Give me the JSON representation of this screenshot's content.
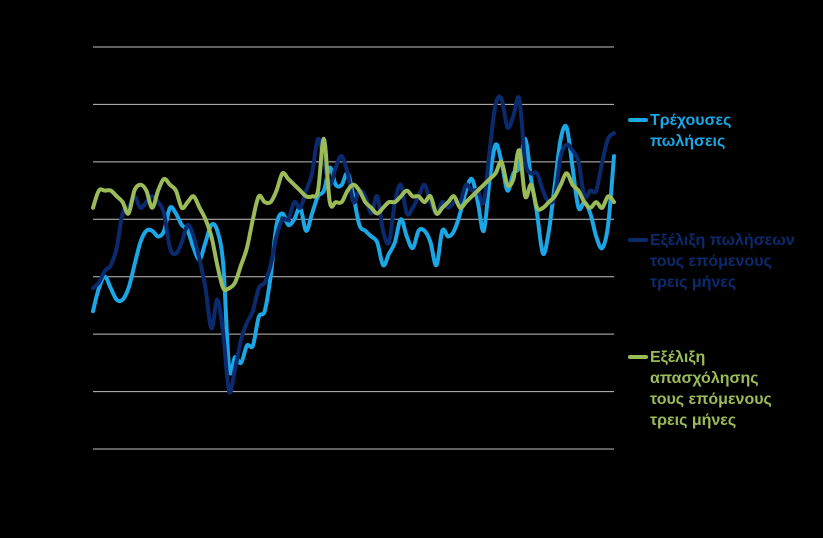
{
  "chart_data": {
    "type": "line",
    "title": "",
    "xlabel": "",
    "ylabel": "",
    "ylim": [
      -4,
      3
    ],
    "grid": true,
    "legend_position": "right",
    "x_count": 89,
    "series": [
      {
        "name": "Τρέχουσες πωλήσεις",
        "color": "#1BA6E6",
        "values": [
          -1.6,
          -1.2,
          -1.0,
          -1.2,
          -1.4,
          -1.4,
          -1.2,
          -0.8,
          -0.4,
          -0.2,
          -0.2,
          -0.3,
          -0.2,
          0.2,
          0.1,
          -0.1,
          -0.2,
          -0.5,
          -0.7,
          -0.4,
          -0.1,
          -0.2,
          -0.8,
          -2.6,
          -2.4,
          -2.5,
          -2.2,
          -2.2,
          -1.7,
          -1.6,
          -1.0,
          -0.1,
          0.1,
          -0.1,
          0.0,
          0.2,
          -0.2,
          0.1,
          0.4,
          0.5,
          0.9,
          0.6,
          0.6,
          0.8,
          0.4,
          -0.1,
          -0.2,
          -0.3,
          -0.4,
          -0.8,
          -0.6,
          -0.4,
          0.0,
          -0.3,
          -0.5,
          -0.2,
          -0.2,
          -0.4,
          -0.8,
          -0.2,
          -0.3,
          -0.2,
          0.1,
          0.5,
          0.7,
          0.3,
          -0.2,
          0.7,
          1.3,
          1.0,
          0.5,
          0.8,
          0.9,
          1.4,
          0.7,
          0.1,
          -0.6,
          -0.2,
          0.6,
          1.4,
          1.6,
          0.9,
          0.2,
          0.3,
          0.1,
          -0.3,
          -0.5,
          -0.1,
          1.1
        ]
      },
      {
        "name": "Εξέλιξη πωλήσεων τους επόμενους τρεις μήνες",
        "color": "#0B2A6E",
        "values": [
          -1.2,
          -1.1,
          -0.9,
          -0.8,
          -0.5,
          0.1,
          0.2,
          0.4,
          0.2,
          0.3,
          0.4,
          0.3,
          0.1,
          -0.5,
          -0.6,
          -0.4,
          -0.1,
          -0.3,
          -0.7,
          -1.2,
          -1.9,
          -1.4,
          -2.0,
          -3.0,
          -2.6,
          -2.1,
          -1.8,
          -1.6,
          -1.2,
          -1.1,
          -0.8,
          -0.3,
          0.0,
          0.0,
          0.3,
          0.2,
          0.5,
          0.8,
          1.4,
          1.0,
          0.6,
          0.9,
          1.1,
          0.8,
          0.3,
          0.5,
          0.4,
          0.1,
          0.4,
          -0.2,
          -0.4,
          0.3,
          0.6,
          0.1,
          0.2,
          0.4,
          0.6,
          0.3,
          0.1,
          0.3,
          0.2,
          0.3,
          0.3,
          0.6,
          0.5,
          0.5,
          0.3,
          1.2,
          2.0,
          2.1,
          1.6,
          1.8,
          2.1,
          1.0,
          0.8,
          0.8,
          0.5,
          0.3,
          0.4,
          1.1,
          1.3,
          1.2,
          1.0,
          0.4,
          0.5,
          0.5,
          1.0,
          1.4,
          1.5
        ]
      },
      {
        "name": "Εξέλιξη απασχόλησης τους επόμενους τρεις μήνες",
        "color": "#9BBB59",
        "values": [
          0.2,
          0.5,
          0.5,
          0.5,
          0.4,
          0.3,
          0.1,
          0.5,
          0.6,
          0.5,
          0.2,
          0.5,
          0.7,
          0.6,
          0.5,
          0.2,
          0.3,
          0.4,
          0.2,
          0.0,
          -0.3,
          -0.8,
          -1.2,
          -1.2,
          -1.1,
          -0.8,
          -0.5,
          0.0,
          0.4,
          0.3,
          0.3,
          0.5,
          0.8,
          0.7,
          0.6,
          0.5,
          0.4,
          0.4,
          0.5,
          1.4,
          0.3,
          0.3,
          0.3,
          0.5,
          0.6,
          0.5,
          0.3,
          0.2,
          0.1,
          0.2,
          0.3,
          0.3,
          0.4,
          0.5,
          0.4,
          0.4,
          0.3,
          0.4,
          0.1,
          0.2,
          0.3,
          0.4,
          0.2,
          0.3,
          0.4,
          0.5,
          0.6,
          0.7,
          0.8,
          1.0,
          0.6,
          0.7,
          1.2,
          0.4,
          0.6,
          0.2,
          0.2,
          0.3,
          0.4,
          0.6,
          0.8,
          0.6,
          0.5,
          0.3,
          0.2,
          0.3,
          0.2,
          0.4,
          0.3
        ]
      }
    ]
  },
  "legend": {
    "items": [
      {
        "lines": [
          "Τρέχουσες",
          "πωλήσεις"
        ],
        "color": "#1BA6E6",
        "text_color": "#1BA6E6"
      },
      {
        "lines": [
          "Εξέλιξη πωλήσεων",
          "τους επόμενους",
          "τρεις μήνες"
        ],
        "color": "#0B2A6E",
        "text_color": "#0B2A6E"
      },
      {
        "lines": [
          "Εξέλιξη",
          "απασχόλησης",
          "τους επόμενους",
          "τρεις μήνες"
        ],
        "color": "#9BBB59",
        "text_color": "#9BBB59"
      }
    ]
  }
}
